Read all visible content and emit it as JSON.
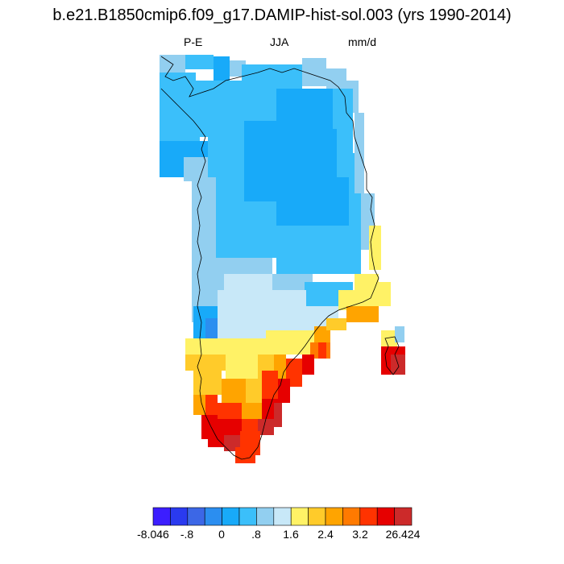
{
  "title": "b.e21.B1850cmip6.f09_g17.DAMIP-hist-sol.003 (yrs 1990-2014)",
  "left_label": "P-E",
  "center_label": "JJA",
  "right_label": "mm/d",
  "colorbar": {
    "colors": [
      "#3c1eff",
      "#2a3aef",
      "#3c67e6",
      "#2b8ef0",
      "#18aaf9",
      "#3bbffa",
      "#92cff0",
      "#c8e8f8",
      "#fff266",
      "#ffcb2a",
      "#ffa400",
      "#ff7a00",
      "#ff3300",
      "#e60000",
      "#cc2a2a"
    ],
    "labels": [
      "-8.046",
      "-.8",
      "0",
      ".8",
      "1.6",
      "2.4",
      "3.2",
      "26.424"
    ]
  }
}
